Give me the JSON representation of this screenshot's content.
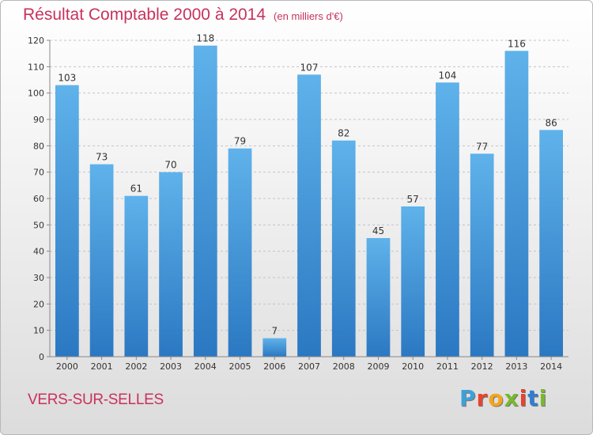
{
  "title": "Résultat Comptable 2000 à 2014",
  "unit_note": "(en milliers d'€)",
  "location": "VERS-SUR-SELLES",
  "logo": {
    "letters": [
      "P",
      "r",
      "o",
      "x",
      "i",
      "t",
      "i"
    ],
    "colors": [
      "#3fa0d8",
      "#e8432e",
      "#f2a51d",
      "#7ab82f",
      "#e8432e",
      "#2e7fd1",
      "#7ab82f"
    ]
  },
  "colors": {
    "bar": "#4a9fe0",
    "bar_dark": "#2b78c2",
    "title": "#c8325a"
  },
  "chart_data": {
    "type": "bar",
    "title": "Résultat Comptable 2000 à 2014",
    "xlabel": "",
    "ylabel": "",
    "categories": [
      "2000",
      "2001",
      "2002",
      "2003",
      "2004",
      "2005",
      "2006",
      "2007",
      "2008",
      "2009",
      "2010",
      "2011",
      "2012",
      "2013",
      "2014"
    ],
    "values": [
      103,
      73,
      61,
      70,
      118,
      79,
      7,
      107,
      82,
      45,
      57,
      104,
      77,
      116,
      86
    ],
    "ylim": [
      0,
      120
    ],
    "yticks": [
      0,
      10,
      20,
      30,
      40,
      50,
      60,
      70,
      80,
      90,
      100,
      110,
      120
    ],
    "grid": true,
    "data_labels": true
  }
}
